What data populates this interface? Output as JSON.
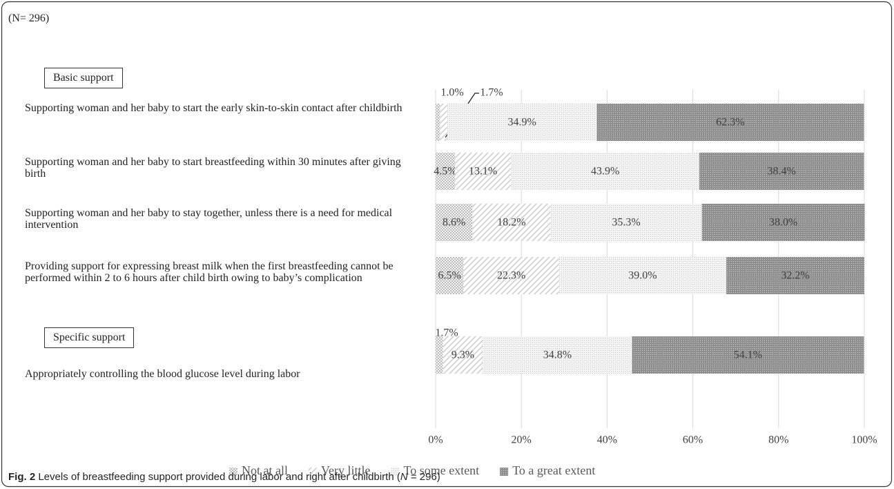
{
  "chart_data": {
    "type": "bar",
    "orientation": "horizontal",
    "stacked": true,
    "sample_note": "(N= 296)",
    "groups": [
      "Basic support",
      "Specific support"
    ],
    "categories": [
      "Supporting woman and her baby to start the early skin-to-skin contact after childbirth",
      "Supporting woman and her baby to start breastfeeding within 30 minutes after giving birth",
      "Supporting woman and her baby to stay together, unless there is a need for medical intervention",
      "Providing support for expressing breast milk when the first breastfeeding cannot be performed within 2 to 6 hours after child birth owing to baby’s complication",
      "Appropriately controlling the blood glucose level during labor"
    ],
    "series": [
      {
        "name": "Not at all",
        "color": "#bdbdbd",
        "values": [
          1.0,
          4.5,
          8.6,
          6.5,
          1.7
        ],
        "value_labels": [
          "1.0%",
          "4.5%",
          "8.6%",
          "6.5%",
          "1.7%"
        ]
      },
      {
        "name": "Very little",
        "color": "#cfcfcf",
        "values": [
          1.7,
          13.1,
          18.2,
          22.3,
          9.3
        ],
        "value_labels": [
          "1.7%",
          "13.1%",
          "18.2%",
          "22.3%",
          "9.3%"
        ]
      },
      {
        "name": "To some extent",
        "color": "#c4c4c4",
        "values": [
          34.9,
          43.9,
          35.3,
          39.0,
          34.8
        ],
        "value_labels": [
          "34.9%",
          "43.9%",
          "35.3%",
          "39.0%",
          "34.8%"
        ]
      },
      {
        "name": "To a great extent",
        "color": "#8f8f8f",
        "values": [
          62.3,
          38.4,
          38.0,
          32.2,
          54.1
        ],
        "value_labels": [
          "62.3%",
          "38.4%",
          "38.0%",
          "32.2%",
          "54.1%"
        ]
      }
    ],
    "xlim": [
      0,
      100
    ],
    "xticks": [
      {
        "value": 0,
        "label": "0%"
      },
      {
        "value": 20,
        "label": "20%"
      },
      {
        "value": 40,
        "label": "40%"
      },
      {
        "value": 60,
        "label": "60%"
      },
      {
        "value": 80,
        "label": "80%"
      },
      {
        "value": 100,
        "label": "100%"
      }
    ],
    "grid": true,
    "legend": "bottom",
    "caption": {
      "label": "Fig. 2",
      "text": "Levels of breastfeeding support provided during labor and right after childbirth (",
      "italic": "N",
      "tail": " = 296)"
    }
  }
}
